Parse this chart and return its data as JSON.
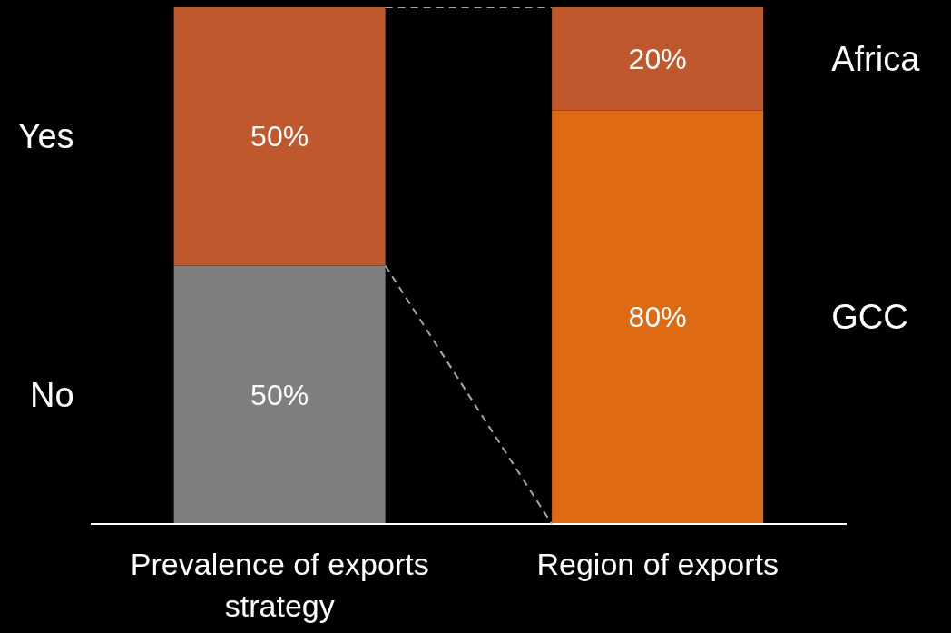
{
  "chart_data": {
    "type": "bar",
    "stacked": true,
    "categories": [
      "Prevalence of exports strategy",
      "Region of exports"
    ],
    "series": [
      {
        "name": "No",
        "color": "#7f7f7f",
        "values": [
          50,
          null
        ],
        "value_labels": [
          "50%",
          null
        ]
      },
      {
        "name": "Yes",
        "color": "#c0582d",
        "values": [
          50,
          null
        ],
        "value_labels": [
          "50%",
          null
        ]
      },
      {
        "name": "GCC",
        "color": "#de6a14",
        "values": [
          null,
          80
        ],
        "value_labels": [
          null,
          "80%"
        ]
      },
      {
        "name": "Africa",
        "color": "#c0582d",
        "values": [
          null,
          20
        ],
        "value_labels": [
          null,
          "20%"
        ]
      }
    ]
  }
}
